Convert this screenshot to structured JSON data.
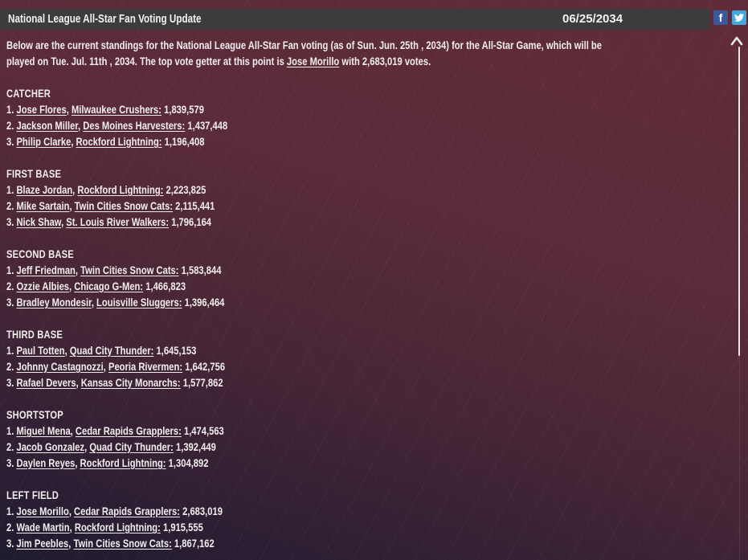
{
  "titlebar": {
    "title": "National League All-Star Fan Voting Update",
    "date": "06/25/2034",
    "bg_color": "#3c3b3d"
  },
  "social": {
    "facebook_glyph": "f",
    "facebook_color": "#3b5998",
    "twitter_color": "#42a9e0"
  },
  "intro": {
    "line1": "Below are the current standings for the National League All-Star Fan voting (as of Sun. Jun. 25th , 2034) for the All-Star Game, which will be",
    "line2_pre": "played on Tue. Jul. 11th , 2034. The top vote getter at this point is ",
    "line2_link": "Jose Morillo",
    "line2_post": " with 2,683,019 votes."
  },
  "format": {
    "rank_suffix": ". ",
    "name_sep": ", ",
    "team_colon": ":",
    "votes_sep": " "
  },
  "sections": [
    {
      "position": "CATCHER",
      "players": [
        {
          "rank": "1",
          "name": "Jose Flores",
          "team": "Milwaukee Crushers",
          "votes": "1,839,579"
        },
        {
          "rank": "2",
          "name": "Jackson Miller",
          "team": "Des Moines Harvesters",
          "votes": "1,437,448"
        },
        {
          "rank": "3",
          "name": "Philip Clarke",
          "team": "Rockford Lightning",
          "votes": "1,196,408"
        }
      ]
    },
    {
      "position": "FIRST BASE",
      "players": [
        {
          "rank": "1",
          "name": "Blaze Jordan",
          "team": "Rockford Lightning",
          "votes": "2,223,825"
        },
        {
          "rank": "2",
          "name": "Mike Sartain",
          "team": "Twin Cities Snow Cats",
          "votes": "2,115,441"
        },
        {
          "rank": "3",
          "name": "Nick Shaw",
          "team": "St. Louis River Walkers",
          "votes": "1,796,164"
        }
      ]
    },
    {
      "position": "SECOND BASE",
      "players": [
        {
          "rank": "1",
          "name": "Jeff Friedman",
          "team": "Twin Cities Snow Cats",
          "votes": "1,583,844"
        },
        {
          "rank": "2",
          "name": "Ozzie Albies",
          "team": "Chicago G-Men",
          "votes": "1,466,823"
        },
        {
          "rank": "3",
          "name": "Bradley Mondesir",
          "team": "Louisville Sluggers",
          "votes": "1,396,464"
        }
      ]
    },
    {
      "position": "THIRD BASE",
      "players": [
        {
          "rank": "1",
          "name": "Paul Totten",
          "team": "Quad City Thunder",
          "votes": "1,645,153"
        },
        {
          "rank": "2",
          "name": "Johnny Castagnozzi",
          "team": "Peoria Rivermen",
          "votes": "1,642,756"
        },
        {
          "rank": "3",
          "name": "Rafael Devers",
          "team": "Kansas City Monarchs",
          "votes": "1,577,862"
        }
      ]
    },
    {
      "position": "SHORTSTOP",
      "players": [
        {
          "rank": "1",
          "name": "Miguel Mena",
          "team": "Cedar Rapids Grapplers",
          "votes": "1,474,563"
        },
        {
          "rank": "2",
          "name": "Jacob Gonzalez",
          "team": "Quad City Thunder",
          "votes": "1,392,449"
        },
        {
          "rank": "3",
          "name": "Daylen Reyes",
          "team": "Rockford Lightning",
          "votes": "1,304,892"
        }
      ]
    },
    {
      "position": "LEFT FIELD",
      "players": [
        {
          "rank": "1",
          "name": "Jose Morillo",
          "team": "Cedar Rapids Grapplers",
          "votes": "2,683,019"
        },
        {
          "rank": "2",
          "name": "Wade Martin",
          "team": "Rockford Lightning",
          "votes": "1,915,555"
        },
        {
          "rank": "3",
          "name": "Jim Peebles",
          "team": "Twin Cities Snow Cats",
          "votes": "1,867,162"
        }
      ]
    }
  ]
}
